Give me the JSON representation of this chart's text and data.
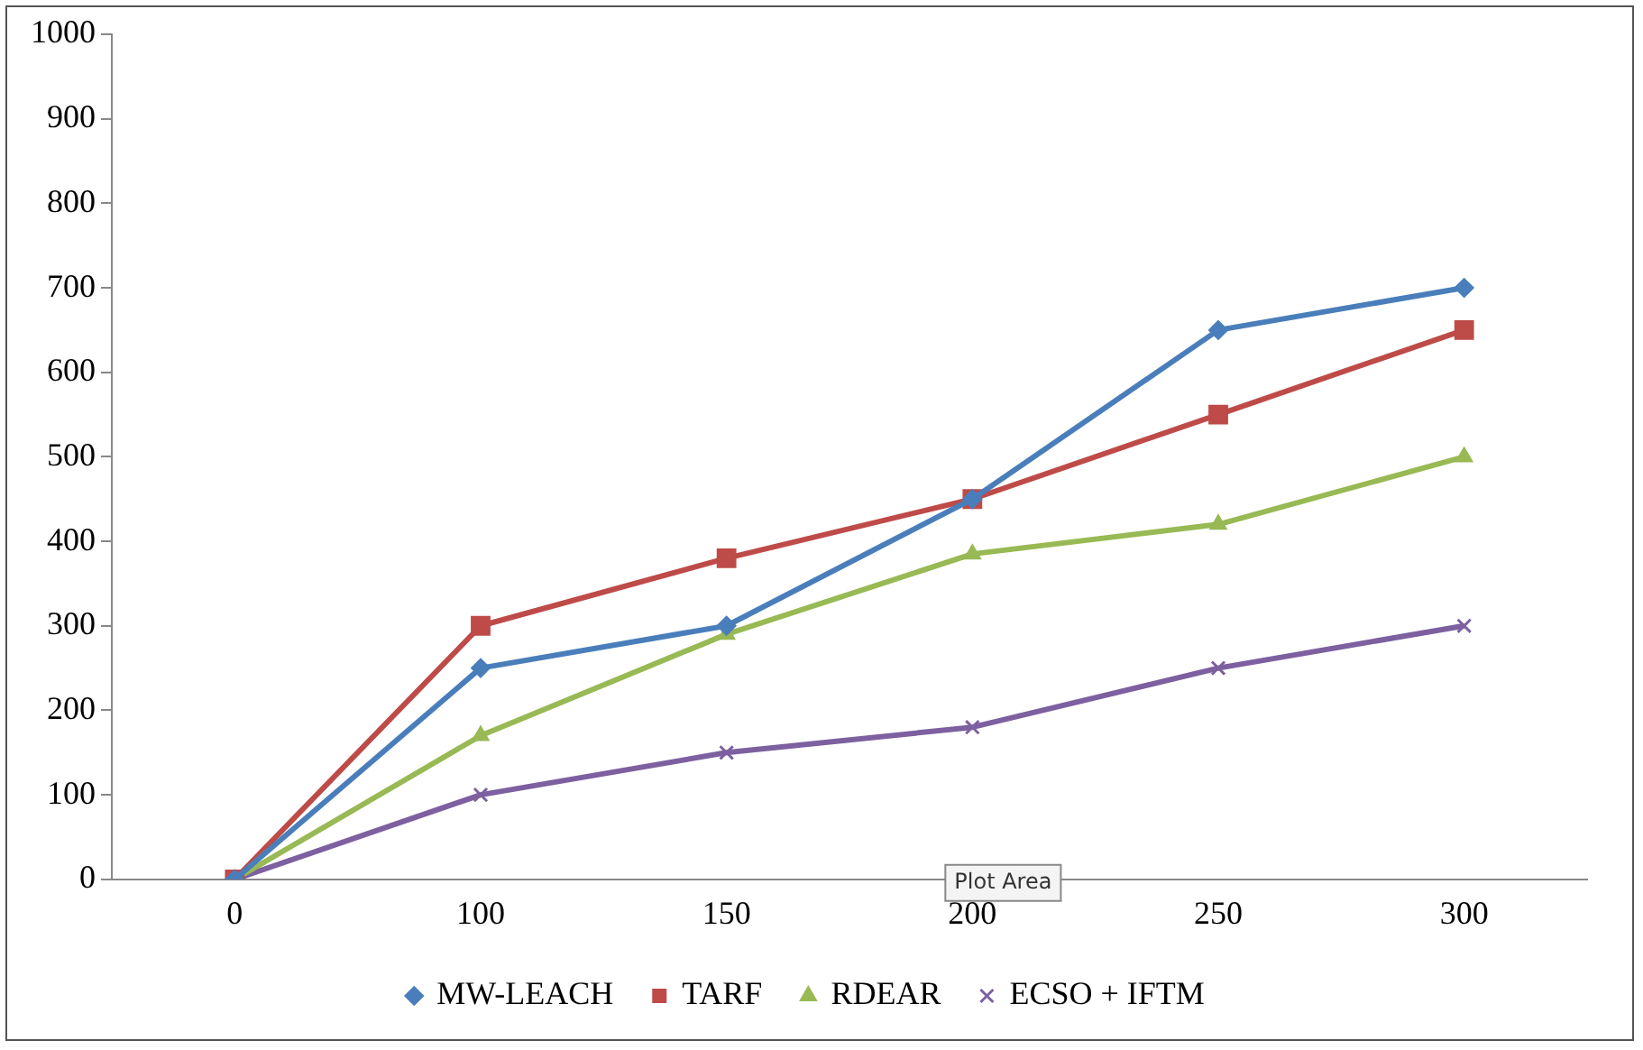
{
  "chart_data": {
    "type": "line",
    "categories": [
      "0",
      "100",
      "150",
      "200",
      "250",
      "300"
    ],
    "series": [
      {
        "name": "MW-LEACH",
        "color": "#4a7ebb",
        "marker": "diamond",
        "values": [
          0,
          250,
          300,
          450,
          650,
          700
        ]
      },
      {
        "name": "TARF",
        "color": "#be4b48",
        "marker": "square",
        "values": [
          0,
          300,
          380,
          450,
          550,
          650
        ]
      },
      {
        "name": "RDEAR",
        "color": "#98b954",
        "marker": "triangle",
        "values": [
          0,
          170,
          290,
          385,
          420,
          500
        ]
      },
      {
        "name": "ECSO + IFTM",
        "color": "#7d60a0",
        "marker": "cross",
        "values": [
          0,
          100,
          150,
          180,
          250,
          300
        ]
      }
    ],
    "ylim": [
      0,
      1000
    ],
    "yticks": [
      0,
      100,
      200,
      300,
      400,
      500,
      600,
      700,
      800,
      900,
      1000
    ],
    "grid": false,
    "legend": "bottom",
    "annotations": [
      "Plot Area"
    ]
  }
}
